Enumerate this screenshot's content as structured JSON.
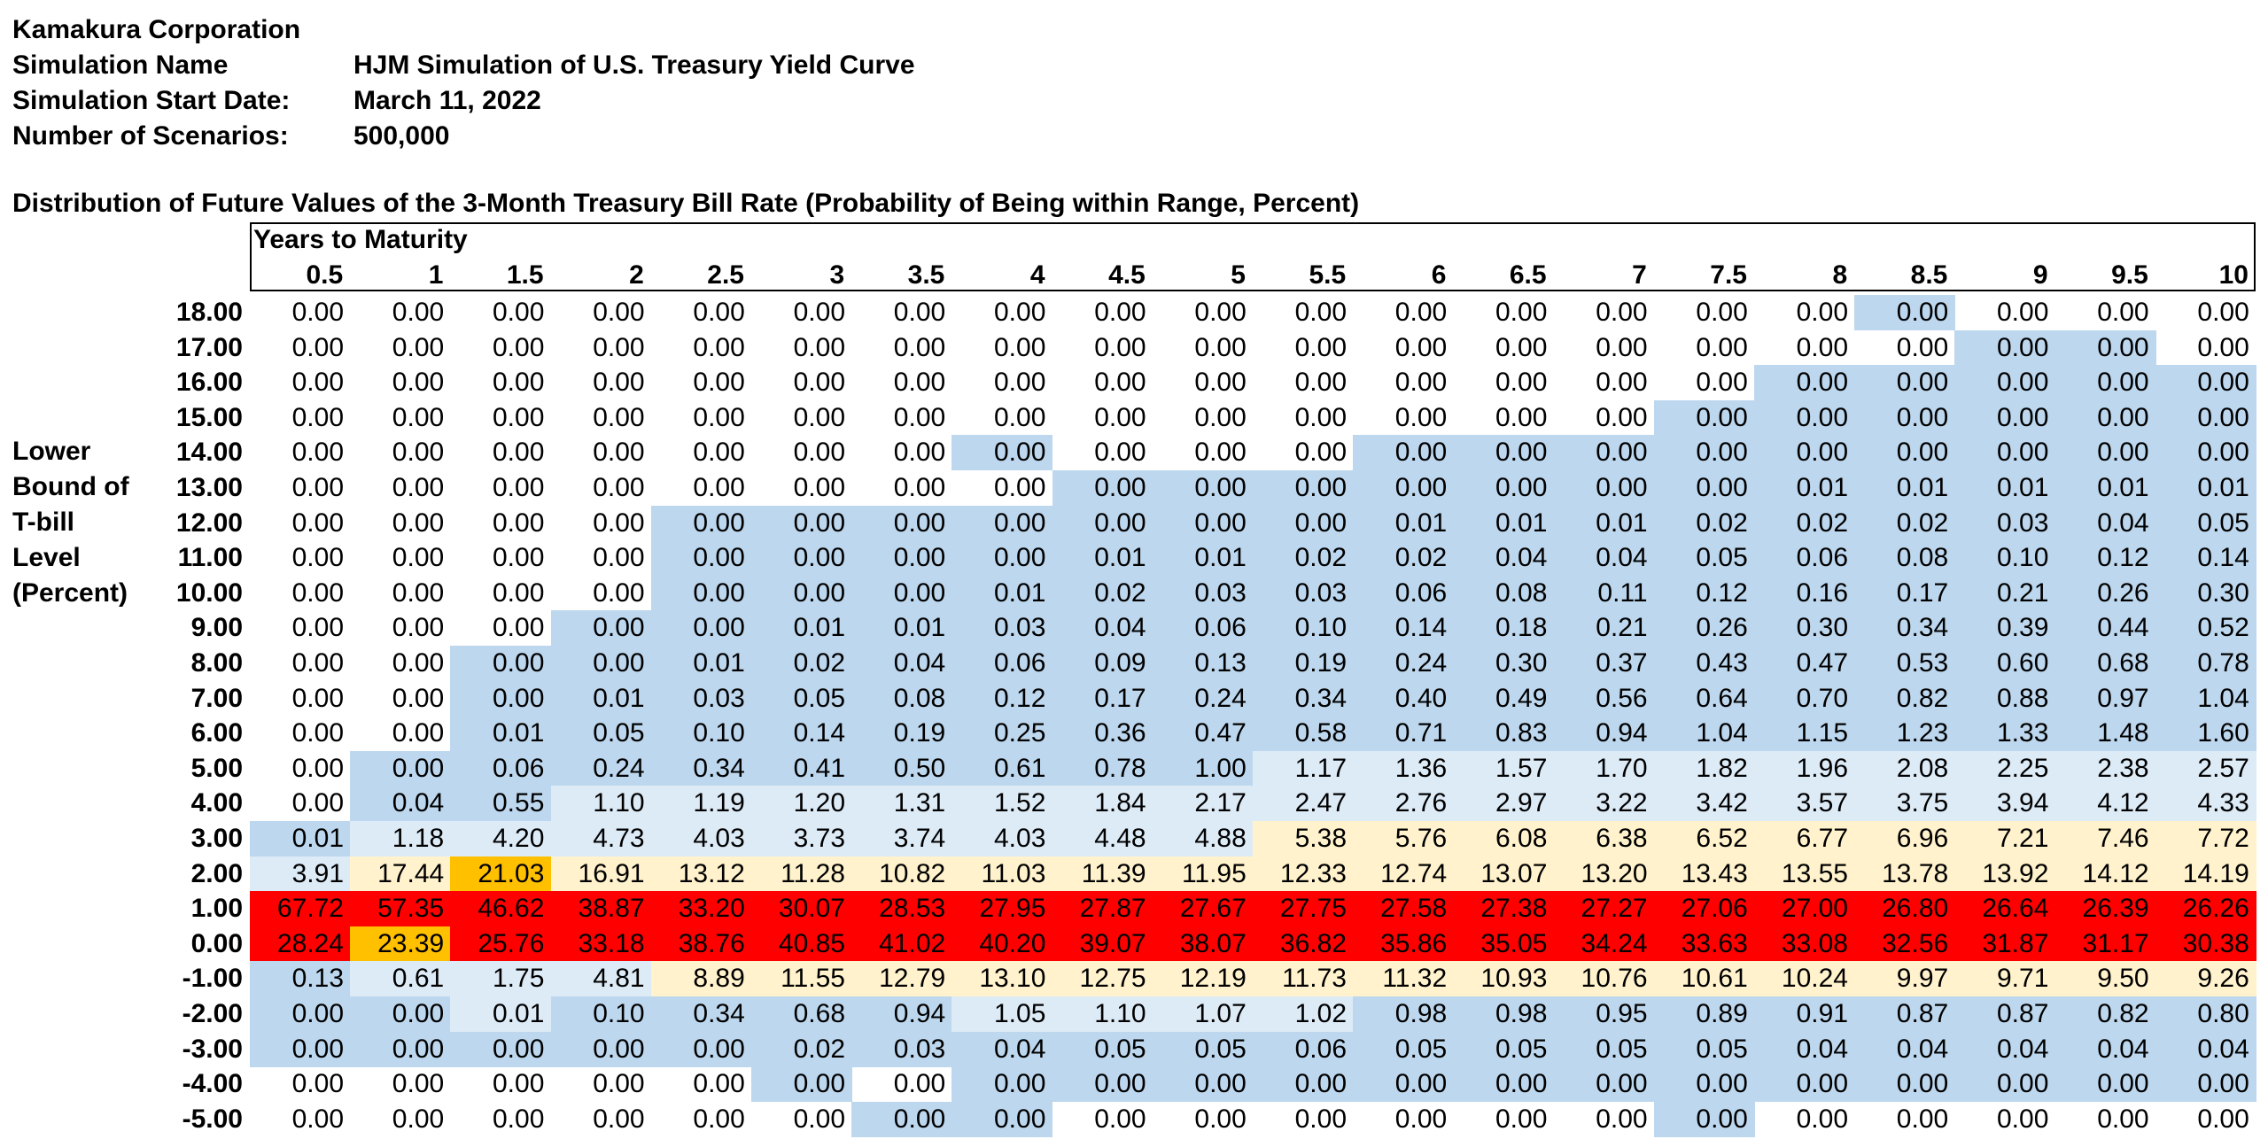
{
  "header": {
    "company": "Kamakura Corporation",
    "sim_name_label": "Simulation Name",
    "sim_name_value": "HJM Simulation of U.S. Treasury Yield Curve",
    "start_date_label": "Simulation Start Date:",
    "start_date_value": "March 11, 2022",
    "scenarios_label": "Number of Scenarios:",
    "scenarios_value": "500,000"
  },
  "table": {
    "title": "Distribution of Future Values of the 3-Month Treasury Bill Rate (Probability of Being within Range, Percent)",
    "years_label": "Years to Maturity",
    "side_label": [
      "Lower",
      "Bound of",
      "T-bill",
      "Level",
      "(Percent)"
    ],
    "columns": [
      "0.5",
      "1",
      "1.5",
      "2",
      "2.5",
      "3",
      "3.5",
      "4",
      "4.5",
      "5",
      "5.5",
      "6",
      "6.5",
      "7",
      "7.5",
      "8",
      "8.5",
      "9",
      "9.5",
      "10"
    ],
    "rows": [
      {
        "label": "18.00",
        "values": [
          "0.00",
          "0.00",
          "0.00",
          "0.00",
          "0.00",
          "0.00",
          "0.00",
          "0.00",
          "0.00",
          "0.00",
          "0.00",
          "0.00",
          "0.00",
          "0.00",
          "0.00",
          "0.00",
          "0.00",
          "0.00",
          "0.00",
          "0.00"
        ]
      },
      {
        "label": "17.00",
        "values": [
          "0.00",
          "0.00",
          "0.00",
          "0.00",
          "0.00",
          "0.00",
          "0.00",
          "0.00",
          "0.00",
          "0.00",
          "0.00",
          "0.00",
          "0.00",
          "0.00",
          "0.00",
          "0.00",
          "0.00",
          "0.00",
          "0.00",
          "0.00"
        ]
      },
      {
        "label": "16.00",
        "values": [
          "0.00",
          "0.00",
          "0.00",
          "0.00",
          "0.00",
          "0.00",
          "0.00",
          "0.00",
          "0.00",
          "0.00",
          "0.00",
          "0.00",
          "0.00",
          "0.00",
          "0.00",
          "0.00",
          "0.00",
          "0.00",
          "0.00",
          "0.00"
        ]
      },
      {
        "label": "15.00",
        "values": [
          "0.00",
          "0.00",
          "0.00",
          "0.00",
          "0.00",
          "0.00",
          "0.00",
          "0.00",
          "0.00",
          "0.00",
          "0.00",
          "0.00",
          "0.00",
          "0.00",
          "0.00",
          "0.00",
          "0.00",
          "0.00",
          "0.00",
          "0.00"
        ]
      },
      {
        "label": "14.00",
        "values": [
          "0.00",
          "0.00",
          "0.00",
          "0.00",
          "0.00",
          "0.00",
          "0.00",
          "0.00",
          "0.00",
          "0.00",
          "0.00",
          "0.00",
          "0.00",
          "0.00",
          "0.00",
          "0.00",
          "0.00",
          "0.00",
          "0.00",
          "0.00"
        ]
      },
      {
        "label": "13.00",
        "values": [
          "0.00",
          "0.00",
          "0.00",
          "0.00",
          "0.00",
          "0.00",
          "0.00",
          "0.00",
          "0.00",
          "0.00",
          "0.00",
          "0.00",
          "0.00",
          "0.00",
          "0.00",
          "0.01",
          "0.01",
          "0.01",
          "0.01",
          "0.01"
        ]
      },
      {
        "label": "12.00",
        "values": [
          "0.00",
          "0.00",
          "0.00",
          "0.00",
          "0.00",
          "0.00",
          "0.00",
          "0.00",
          "0.00",
          "0.00",
          "0.00",
          "0.01",
          "0.01",
          "0.01",
          "0.02",
          "0.02",
          "0.02",
          "0.03",
          "0.04",
          "0.05"
        ]
      },
      {
        "label": "11.00",
        "values": [
          "0.00",
          "0.00",
          "0.00",
          "0.00",
          "0.00",
          "0.00",
          "0.00",
          "0.00",
          "0.01",
          "0.01",
          "0.02",
          "0.02",
          "0.04",
          "0.04",
          "0.05",
          "0.06",
          "0.08",
          "0.10",
          "0.12",
          "0.14"
        ]
      },
      {
        "label": "10.00",
        "values": [
          "0.00",
          "0.00",
          "0.00",
          "0.00",
          "0.00",
          "0.00",
          "0.00",
          "0.01",
          "0.02",
          "0.03",
          "0.03",
          "0.06",
          "0.08",
          "0.11",
          "0.12",
          "0.16",
          "0.17",
          "0.21",
          "0.26",
          "0.30"
        ]
      },
      {
        "label": "9.00",
        "values": [
          "0.00",
          "0.00",
          "0.00",
          "0.00",
          "0.00",
          "0.01",
          "0.01",
          "0.03",
          "0.04",
          "0.06",
          "0.10",
          "0.14",
          "0.18",
          "0.21",
          "0.26",
          "0.30",
          "0.34",
          "0.39",
          "0.44",
          "0.52"
        ]
      },
      {
        "label": "8.00",
        "values": [
          "0.00",
          "0.00",
          "0.00",
          "0.00",
          "0.01",
          "0.02",
          "0.04",
          "0.06",
          "0.09",
          "0.13",
          "0.19",
          "0.24",
          "0.30",
          "0.37",
          "0.43",
          "0.47",
          "0.53",
          "0.60",
          "0.68",
          "0.78"
        ]
      },
      {
        "label": "7.00",
        "values": [
          "0.00",
          "0.00",
          "0.00",
          "0.01",
          "0.03",
          "0.05",
          "0.08",
          "0.12",
          "0.17",
          "0.24",
          "0.34",
          "0.40",
          "0.49",
          "0.56",
          "0.64",
          "0.70",
          "0.82",
          "0.88",
          "0.97",
          "1.04"
        ]
      },
      {
        "label": "6.00",
        "values": [
          "0.00",
          "0.00",
          "0.01",
          "0.05",
          "0.10",
          "0.14",
          "0.19",
          "0.25",
          "0.36",
          "0.47",
          "0.58",
          "0.71",
          "0.83",
          "0.94",
          "1.04",
          "1.15",
          "1.23",
          "1.33",
          "1.48",
          "1.60"
        ]
      },
      {
        "label": "5.00",
        "values": [
          "0.00",
          "0.00",
          "0.06",
          "0.24",
          "0.34",
          "0.41",
          "0.50",
          "0.61",
          "0.78",
          "1.00",
          "1.17",
          "1.36",
          "1.57",
          "1.70",
          "1.82",
          "1.96",
          "2.08",
          "2.25",
          "2.38",
          "2.57"
        ]
      },
      {
        "label": "4.00",
        "values": [
          "0.00",
          "0.04",
          "0.55",
          "1.10",
          "1.19",
          "1.20",
          "1.31",
          "1.52",
          "1.84",
          "2.17",
          "2.47",
          "2.76",
          "2.97",
          "3.22",
          "3.42",
          "3.57",
          "3.75",
          "3.94",
          "4.12",
          "4.33"
        ]
      },
      {
        "label": "3.00",
        "values": [
          "0.01",
          "1.18",
          "4.20",
          "4.73",
          "4.03",
          "3.73",
          "3.74",
          "4.03",
          "4.48",
          "4.88",
          "5.38",
          "5.76",
          "6.08",
          "6.38",
          "6.52",
          "6.77",
          "6.96",
          "7.21",
          "7.46",
          "7.72"
        ]
      },
      {
        "label": "2.00",
        "values": [
          "3.91",
          "17.44",
          "21.03",
          "16.91",
          "13.12",
          "11.28",
          "10.82",
          "11.03",
          "11.39",
          "11.95",
          "12.33",
          "12.74",
          "13.07",
          "13.20",
          "13.43",
          "13.55",
          "13.78",
          "13.92",
          "14.12",
          "14.19"
        ]
      },
      {
        "label": "1.00",
        "values": [
          "67.72",
          "57.35",
          "46.62",
          "38.87",
          "33.20",
          "30.07",
          "28.53",
          "27.95",
          "27.87",
          "27.67",
          "27.75",
          "27.58",
          "27.38",
          "27.27",
          "27.06",
          "27.00",
          "26.80",
          "26.64",
          "26.39",
          "26.26"
        ]
      },
      {
        "label": "0.00",
        "values": [
          "28.24",
          "23.39",
          "25.76",
          "33.18",
          "38.76",
          "40.85",
          "41.02",
          "40.20",
          "39.07",
          "38.07",
          "36.82",
          "35.86",
          "35.05",
          "34.24",
          "33.63",
          "33.08",
          "32.56",
          "31.87",
          "31.17",
          "30.38"
        ]
      },
      {
        "label": "-1.00",
        "values": [
          "0.13",
          "0.61",
          "1.75",
          "4.81",
          "8.89",
          "11.55",
          "12.79",
          "13.10",
          "12.75",
          "12.19",
          "11.73",
          "11.32",
          "10.93",
          "10.76",
          "10.61",
          "10.24",
          "9.97",
          "9.71",
          "9.50",
          "9.26"
        ]
      },
      {
        "label": "-2.00",
        "values": [
          "0.00",
          "0.00",
          "0.01",
          "0.10",
          "0.34",
          "0.68",
          "0.94",
          "1.05",
          "1.10",
          "1.07",
          "1.02",
          "0.98",
          "0.98",
          "0.95",
          "0.89",
          "0.91",
          "0.87",
          "0.87",
          "0.82",
          "0.80"
        ]
      },
      {
        "label": "-3.00",
        "values": [
          "0.00",
          "0.00",
          "0.00",
          "0.00",
          "0.00",
          "0.02",
          "0.03",
          "0.04",
          "0.05",
          "0.05",
          "0.06",
          "0.05",
          "0.05",
          "0.05",
          "0.05",
          "0.04",
          "0.04",
          "0.04",
          "0.04",
          "0.04"
        ]
      },
      {
        "label": "-4.00",
        "values": [
          "0.00",
          "0.00",
          "0.00",
          "0.00",
          "0.00",
          "0.00",
          "0.00",
          "0.00",
          "0.00",
          "0.00",
          "0.00",
          "0.00",
          "0.00",
          "0.00",
          "0.00",
          "0.00",
          "0.00",
          "0.00",
          "0.00",
          "0.00"
        ]
      },
      {
        "label": "-5.00",
        "values": [
          "0.00",
          "0.00",
          "0.00",
          "0.00",
          "0.00",
          "0.00",
          "0.00",
          "0.00",
          "0.00",
          "0.00",
          "0.00",
          "0.00",
          "0.00",
          "0.00",
          "0.00",
          "0.00",
          "0.00",
          "0.00",
          "0.00",
          "0.00"
        ]
      }
    ],
    "colors": {
      "blue": "#bdd7ee",
      "light_blue": "#ddebf7",
      "light_yellow": "#fff2cc",
      "yellow": "#ffe699",
      "orange": "#ffc000",
      "red": "#ff0000"
    },
    "shading": [
      "WWWWWWWWWWWWWWWWBWWW",
      "WWWWWWWWWWWWWWWWWBBW",
      "WWWWWWWWWWWWWWWBBBBB",
      "WWWWWWWWWWWWWWBBBBBB",
      "WWWWWWWBWWWBBBBBBBBB",
      "WWWWWWWWBBBBBBBBBBBB",
      "WWWWBBBBBBBBBBBBBBBB",
      "WWWWBBBBBBBBBBBBBBBB",
      "WWWWBBBBBBBBBBBBBBBB",
      "WWWBBBBBBBBBBBBBBBBB",
      "WWBBBBBBBBBBBBBBBBBB",
      "WWBBBBBBBBBBBBBBBBBB",
      "WWBBBBBBBBBBBBBBBBBB",
      "WBBBBBBBBBLLLLLLLLLL",
      "WBBLLLLLLLLLLLLLLLLL",
      "BLLLLLLLLLYYYYYYYYYY",
      "LYOYYYYYYYYYYYYYYYYY",
      "RRRRRRRRRRRRRRRRRRRR",
      "RORRRRRRRRRRRRRRRRRR",
      "BLLLYYYYYYYYYYYYYYYY",
      "BBLBBBBLLLLBBBBBBBBB",
      "BBBBBBBBBBBBBBBBBBBB",
      "WWWWWBWBBBBBBBBBBBBB",
      "WWWWWWBBWWWWWWBWWWWW"
    ]
  }
}
